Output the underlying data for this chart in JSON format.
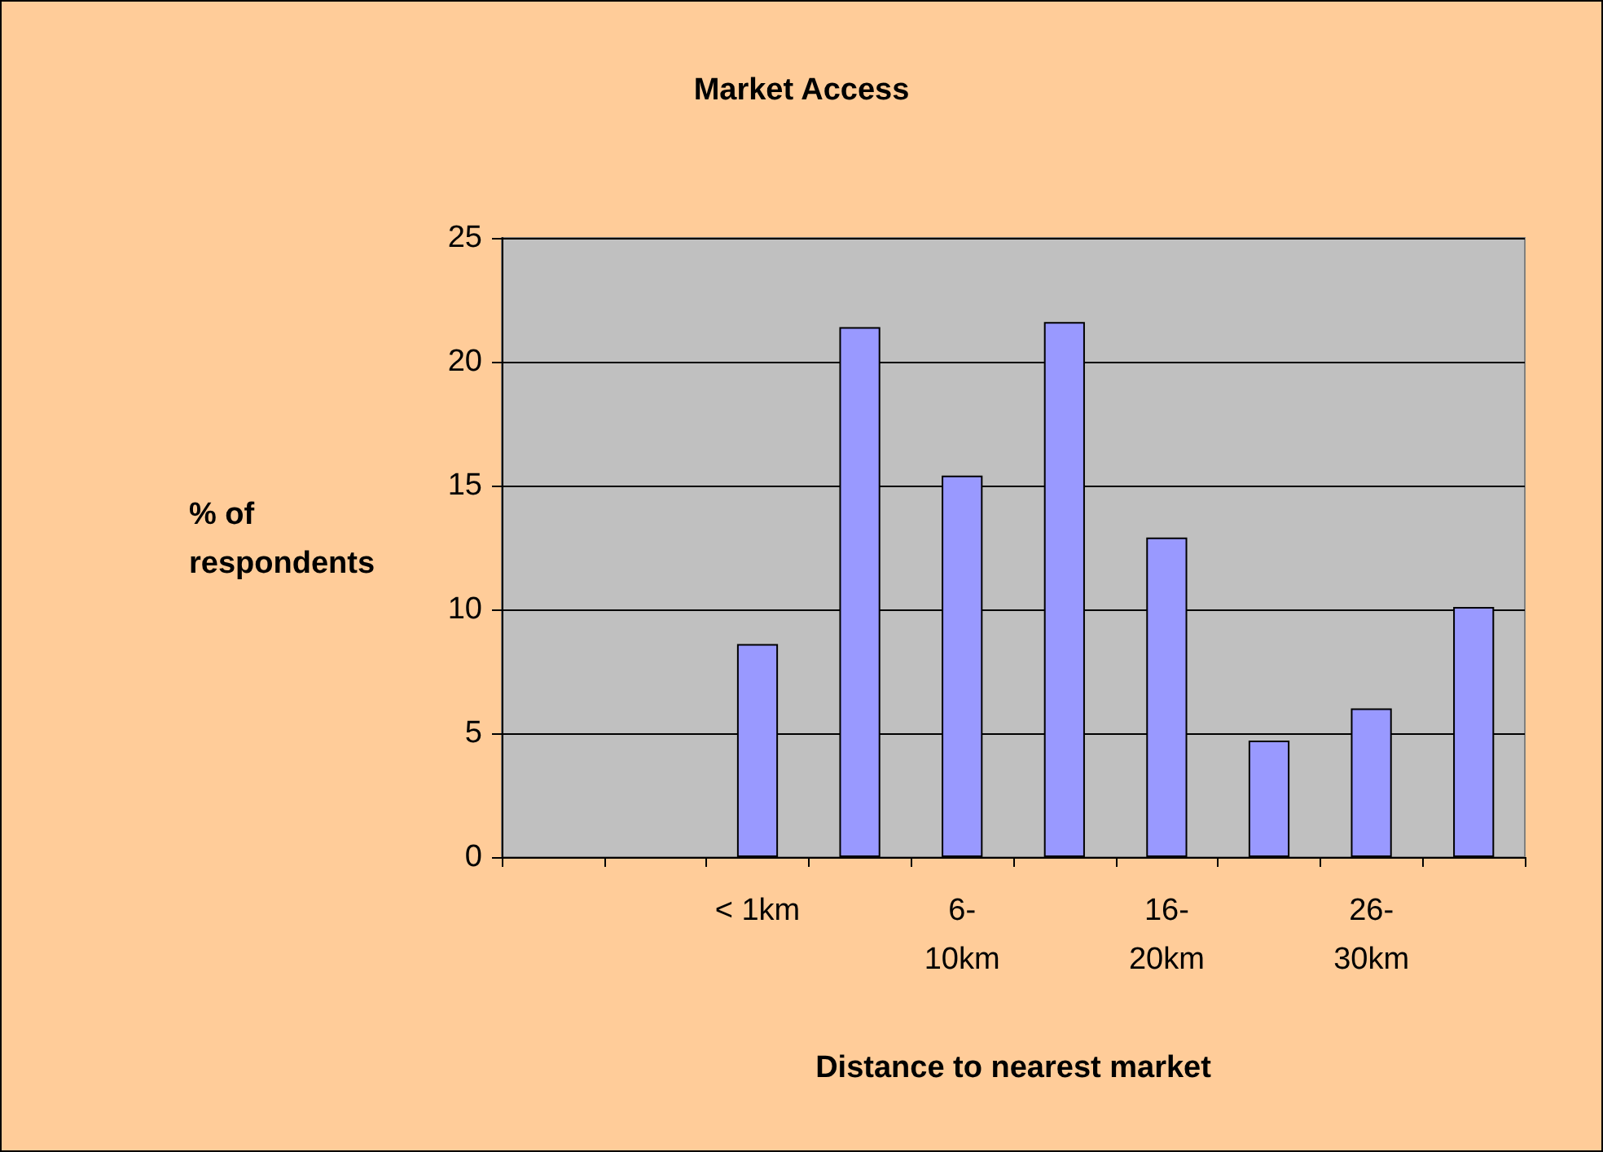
{
  "chart_data": {
    "type": "bar",
    "title": "Market Access",
    "xlabel": "Distance to nearest market",
    "ylabel": "% of respondents",
    "categories": [
      null,
      null,
      "< 1km",
      null,
      "6-10km",
      null,
      "16-20km",
      null,
      "26-30km",
      null
    ],
    "values": [
      null,
      null,
      8.6,
      21.4,
      15.4,
      21.6,
      12.9,
      4.7,
      6.0,
      10.1
    ],
    "color": "#9999ff",
    "ylim": [
      0,
      25
    ],
    "yticks": [
      0,
      5,
      10,
      15,
      20,
      25
    ],
    "grid": "y"
  }
}
